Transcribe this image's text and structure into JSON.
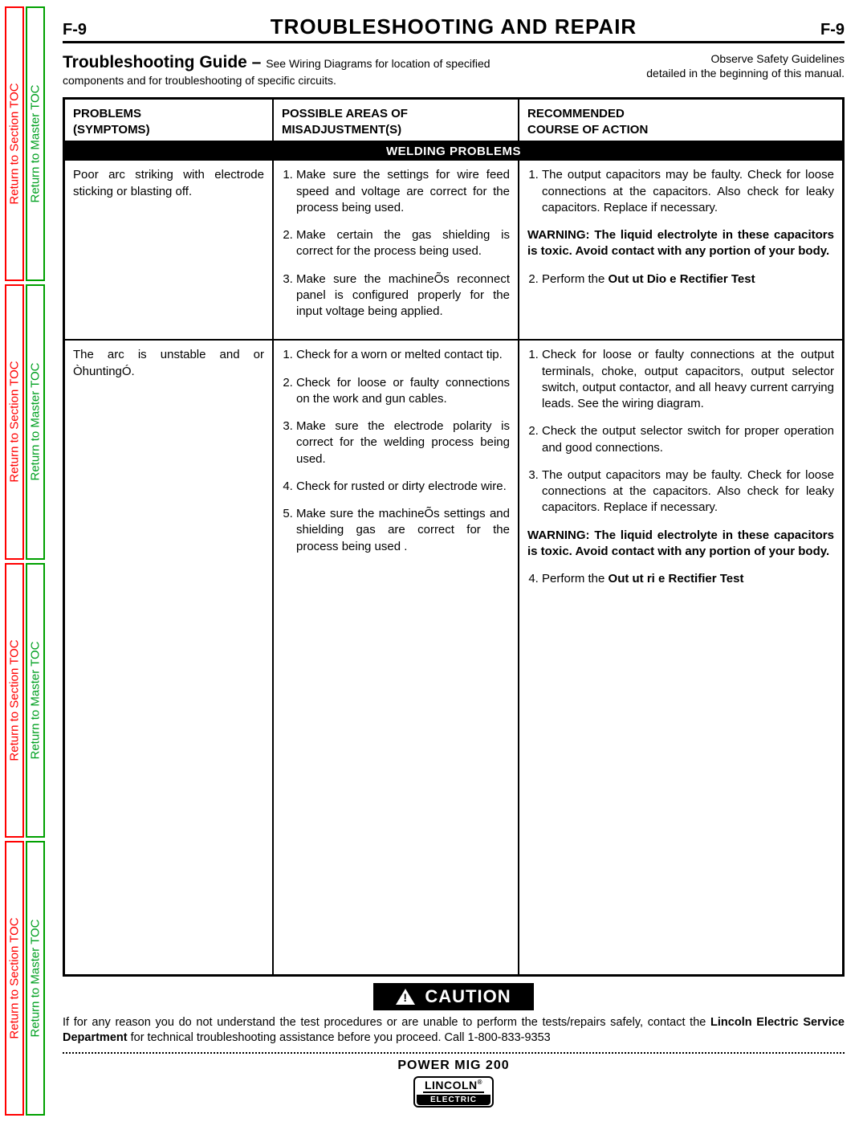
{
  "colors": {
    "red": "#ff0000",
    "green": "#00a000",
    "black": "#000000",
    "white": "#ffffff"
  },
  "side_tabs": {
    "section": "Return to Section TOC",
    "master": "Return to Master TOC"
  },
  "header": {
    "page_left": "F-9",
    "title": "TROUBLESHOOTING  AND  REPAIR",
    "page_right": "F-9"
  },
  "intro": {
    "guide_title": "Troubleshooting Guide",
    "dash": " – ",
    "guide_text": "See Wiring Diagrams for location of specified components and for troubleshooting of specific circuits.",
    "safety1": "Observe Safety Guidelines",
    "safety2": "detailed in the beginning of this manual."
  },
  "table": {
    "headers": {
      "c1a": "PROBLEMS",
      "c1b": "(SYMPTOMS)",
      "c2a": "POSSIBLE AREAS OF",
      "c2b": "MISADJUSTMENT(S)",
      "c3a": "RECOMMENDED",
      "c3b": "COURSE OF ACTION"
    },
    "banner": "WELDING PROBLEMS",
    "rows": [
      {
        "problem": "Poor arc striking with electrode sticking or blasting off.",
        "misadjust": [
          "Make sure the settings for wire feed speed and voltage are correct for the process being used.",
          "Make certain the gas shielding is correct for the process being used.",
          "Make sure the machineÕs reconnect panel is configured properly for the input voltage being applied."
        ],
        "action_items": [
          "The output capacitors may be faulty. Check for loose connections at the capacitors.  Also check for leaky capacitors.  Replace if necessary."
        ],
        "warning": "WARNING: The liquid electrolyte in these capacitors is toxic.  Avoid contact with any portion of your body.",
        "action_after": "Perform the ",
        "action_bold": "Out ut Dio e Rectifier Test"
      },
      {
        "problem": "The arc is unstable and or ÒhuntingÓ.",
        "misadjust": [
          "Check for a worn or melted contact tip.",
          "Check for loose or faulty connections on the work and gun cables.",
          "Make sure the electrode polarity is correct for the welding process being used.",
          "Check for rusted or dirty electrode wire.",
          "Make sure the machineÕs settings and shielding gas are correct for the process being used ."
        ],
        "action_items": [
          "Check for loose or faulty connections at the output terminals, choke, output capacitors, output selector switch, output contactor, and all heavy current carrying leads.  See the wiring diagram.",
          "Check the output selector switch for proper operation and good connections.",
          "The output capacitors may be faulty. Check for loose connections at the capacitors.  Also check for leaky capacitors.  Replace if necessary."
        ],
        "warning": "WARNING: The liquid electrolyte in these capacitors is toxic.  Avoid contact with any portion of your body.",
        "action_after": "Perform the ",
        "action_bold": "Out ut  ri   e Rectifier Test"
      }
    ]
  },
  "caution": {
    "label": "CAUTION",
    "text_before": "If for any reason you do not understand the test procedures or are unable to perform the tests/repairs safely, contact the ",
    "text_bold": "Lincoln Electric Service Department",
    "text_after": " for technical troubleshooting assistance before you proceed.  Call 1-800-833-9353"
  },
  "footer": {
    "model": "POWER  MIG  200",
    "logo_top": "LINCOLN",
    "logo_reg": "®",
    "logo_bot": "ELECTRIC"
  }
}
